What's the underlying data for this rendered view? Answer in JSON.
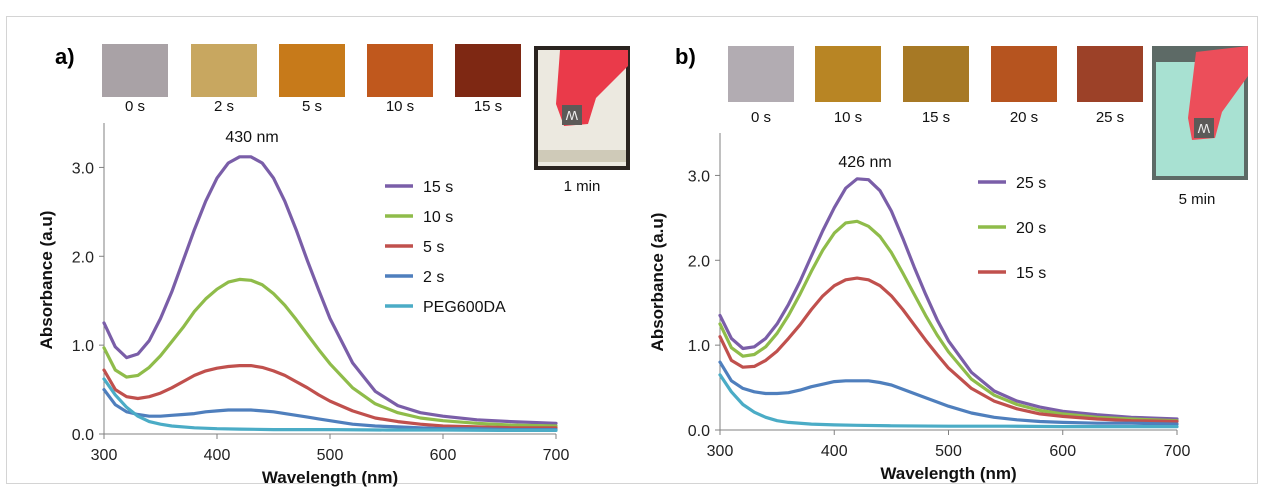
{
  "colors": {
    "purple": "#7a5ea8",
    "green": "#8fbc4a",
    "red": "#c0504d",
    "blue": "#4f7fbd",
    "cyan": "#4bacc6"
  },
  "chart_data": [
    {
      "panel": "a)",
      "type": "line",
      "xlabel": "Wavelength (nm)",
      "ylabel": "Absorbance (a.u)",
      "xlim": [
        300,
        700
      ],
      "ylim": [
        0.0,
        3.5
      ],
      "xticks": [
        "300",
        "400",
        "500",
        "600",
        "700"
      ],
      "yticks": [
        "0.0",
        "1.0",
        "2.0",
        "3.0"
      ],
      "annotation": "430 nm",
      "legend_position": "right",
      "series": [
        {
          "name": "15 s",
          "color": "purple",
          "x": [
            300,
            310,
            320,
            330,
            340,
            350,
            360,
            370,
            380,
            390,
            400,
            410,
            420,
            430,
            440,
            450,
            460,
            470,
            480,
            490,
            500,
            520,
            540,
            560,
            580,
            600,
            630,
            660,
            700
          ],
          "y": [
            1.25,
            0.98,
            0.86,
            0.9,
            1.05,
            1.3,
            1.6,
            1.95,
            2.3,
            2.62,
            2.88,
            3.05,
            3.12,
            3.12,
            3.05,
            2.88,
            2.62,
            2.3,
            1.95,
            1.62,
            1.3,
            0.8,
            0.48,
            0.32,
            0.24,
            0.2,
            0.16,
            0.14,
            0.12
          ]
        },
        {
          "name": "10 s",
          "color": "green",
          "x": [
            300,
            310,
            320,
            330,
            340,
            350,
            360,
            370,
            380,
            390,
            400,
            410,
            420,
            430,
            440,
            450,
            460,
            470,
            480,
            490,
            500,
            520,
            540,
            560,
            580,
            600,
            630,
            660,
            700
          ],
          "y": [
            0.97,
            0.72,
            0.64,
            0.66,
            0.75,
            0.88,
            1.04,
            1.2,
            1.38,
            1.52,
            1.63,
            1.71,
            1.74,
            1.73,
            1.68,
            1.58,
            1.45,
            1.29,
            1.12,
            0.95,
            0.79,
            0.52,
            0.34,
            0.24,
            0.18,
            0.15,
            0.12,
            0.1,
            0.09
          ]
        },
        {
          "name": "5 s",
          "color": "red",
          "x": [
            300,
            310,
            320,
            330,
            340,
            350,
            360,
            370,
            380,
            390,
            400,
            410,
            420,
            430,
            440,
            450,
            460,
            470,
            480,
            490,
            500,
            520,
            540,
            560,
            580,
            600,
            630,
            660,
            700
          ],
          "y": [
            0.72,
            0.5,
            0.42,
            0.4,
            0.42,
            0.46,
            0.52,
            0.59,
            0.66,
            0.71,
            0.74,
            0.76,
            0.77,
            0.77,
            0.75,
            0.71,
            0.66,
            0.59,
            0.52,
            0.44,
            0.37,
            0.26,
            0.18,
            0.14,
            0.11,
            0.09,
            0.08,
            0.07,
            0.07
          ]
        },
        {
          "name": "2 s",
          "color": "blue",
          "x": [
            300,
            310,
            320,
            330,
            340,
            350,
            360,
            370,
            380,
            390,
            400,
            410,
            420,
            430,
            440,
            450,
            460,
            470,
            480,
            490,
            500,
            520,
            540,
            560,
            580,
            600,
            630,
            660,
            700
          ],
          "y": [
            0.5,
            0.33,
            0.25,
            0.22,
            0.2,
            0.2,
            0.21,
            0.22,
            0.23,
            0.25,
            0.26,
            0.27,
            0.27,
            0.27,
            0.26,
            0.25,
            0.23,
            0.21,
            0.19,
            0.17,
            0.15,
            0.11,
            0.09,
            0.08,
            0.07,
            0.06,
            0.06,
            0.05,
            0.05
          ]
        },
        {
          "name": "PEG600DA",
          "color": "cyan",
          "x": [
            300,
            310,
            320,
            330,
            340,
            350,
            360,
            380,
            400,
            420,
            450,
            500,
            550,
            600,
            650,
            700
          ],
          "y": [
            0.62,
            0.44,
            0.3,
            0.2,
            0.14,
            0.11,
            0.09,
            0.07,
            0.06,
            0.055,
            0.05,
            0.05,
            0.045,
            0.045,
            0.04,
            0.04
          ]
        }
      ]
    },
    {
      "panel": "b)",
      "type": "line",
      "xlabel": "Wavelength (nm)",
      "ylabel": "Absorbance (a.u)",
      "xlim": [
        300,
        700
      ],
      "ylim": [
        0.0,
        3.5
      ],
      "xticks": [
        "300",
        "400",
        "500",
        "600",
        "700"
      ],
      "yticks": [
        "0.0",
        "1.0",
        "2.0",
        "3.0"
      ],
      "annotation": "426 nm",
      "legend_position": "right",
      "series": [
        {
          "name": "25 s",
          "color": "purple",
          "x": [
            300,
            310,
            320,
            330,
            340,
            350,
            360,
            370,
            380,
            390,
            400,
            410,
            420,
            430,
            440,
            450,
            460,
            470,
            480,
            490,
            500,
            520,
            540,
            560,
            580,
            600,
            630,
            660,
            700
          ],
          "y": [
            1.35,
            1.08,
            0.96,
            0.98,
            1.08,
            1.25,
            1.48,
            1.75,
            2.05,
            2.35,
            2.62,
            2.85,
            2.96,
            2.95,
            2.82,
            2.58,
            2.26,
            1.92,
            1.6,
            1.3,
            1.05,
            0.68,
            0.46,
            0.34,
            0.27,
            0.22,
            0.18,
            0.15,
            0.13
          ]
        },
        {
          "name": "20 s",
          "color": "green",
          "x": [
            300,
            310,
            320,
            330,
            340,
            350,
            360,
            370,
            380,
            390,
            400,
            410,
            420,
            430,
            440,
            450,
            460,
            470,
            480,
            490,
            500,
            520,
            540,
            560,
            580,
            600,
            630,
            660,
            700
          ],
          "y": [
            1.25,
            0.97,
            0.87,
            0.89,
            0.98,
            1.14,
            1.35,
            1.6,
            1.87,
            2.12,
            2.32,
            2.44,
            2.46,
            2.4,
            2.28,
            2.09,
            1.85,
            1.6,
            1.35,
            1.12,
            0.92,
            0.6,
            0.41,
            0.3,
            0.23,
            0.19,
            0.15,
            0.13,
            0.11
          ]
        },
        {
          "name": "15 s",
          "color": "red",
          "x": [
            300,
            310,
            320,
            330,
            340,
            350,
            360,
            370,
            380,
            390,
            400,
            410,
            420,
            430,
            440,
            450,
            460,
            470,
            480,
            490,
            500,
            520,
            540,
            560,
            580,
            600,
            630,
            660,
            700
          ],
          "y": [
            1.1,
            0.82,
            0.74,
            0.75,
            0.82,
            0.93,
            1.08,
            1.24,
            1.42,
            1.58,
            1.7,
            1.77,
            1.79,
            1.77,
            1.7,
            1.58,
            1.42,
            1.24,
            1.06,
            0.89,
            0.73,
            0.49,
            0.34,
            0.25,
            0.19,
            0.16,
            0.13,
            0.11,
            0.1
          ]
        },
        {
          "name": "",
          "color": "blue",
          "x": [
            300,
            310,
            320,
            330,
            340,
            350,
            360,
            370,
            380,
            390,
            400,
            410,
            420,
            430,
            440,
            450,
            460,
            470,
            480,
            490,
            500,
            520,
            540,
            560,
            580,
            600,
            630,
            660,
            700
          ],
          "y": [
            0.8,
            0.58,
            0.49,
            0.45,
            0.43,
            0.43,
            0.44,
            0.47,
            0.51,
            0.54,
            0.57,
            0.58,
            0.58,
            0.58,
            0.56,
            0.53,
            0.48,
            0.43,
            0.38,
            0.33,
            0.28,
            0.2,
            0.15,
            0.12,
            0.1,
            0.09,
            0.08,
            0.08,
            0.07
          ]
        },
        {
          "name": "",
          "color": "cyan",
          "x": [
            300,
            310,
            320,
            330,
            340,
            350,
            360,
            380,
            400,
            420,
            450,
            500,
            550,
            600,
            650,
            700
          ],
          "y": [
            0.65,
            0.45,
            0.3,
            0.21,
            0.15,
            0.11,
            0.09,
            0.07,
            0.06,
            0.055,
            0.05,
            0.045,
            0.045,
            0.04,
            0.04,
            0.04
          ]
        }
      ]
    }
  ],
  "swatches_a": [
    {
      "label": "0 s",
      "color": "#a9a2a6"
    },
    {
      "label": "2 s",
      "color": "#c8a760"
    },
    {
      "label": "5 s",
      "color": "#c77a1a"
    },
    {
      "label": "10 s",
      "color": "#c0581d"
    },
    {
      "label": "15 s",
      "color": "#7e2813"
    }
  ],
  "photo_a_label": "1 min",
  "swatches_b": [
    {
      "label": "0 s",
      "color": "#b2acb2"
    },
    {
      "label": "10 s",
      "color": "#b88524"
    },
    {
      "label": "15 s",
      "color": "#a77925"
    },
    {
      "label": "20 s",
      "color": "#b6541f"
    },
    {
      "label": "25 s",
      "color": "#9c4128"
    }
  ],
  "photo_b_label": "5 min",
  "photo_letter": "W"
}
